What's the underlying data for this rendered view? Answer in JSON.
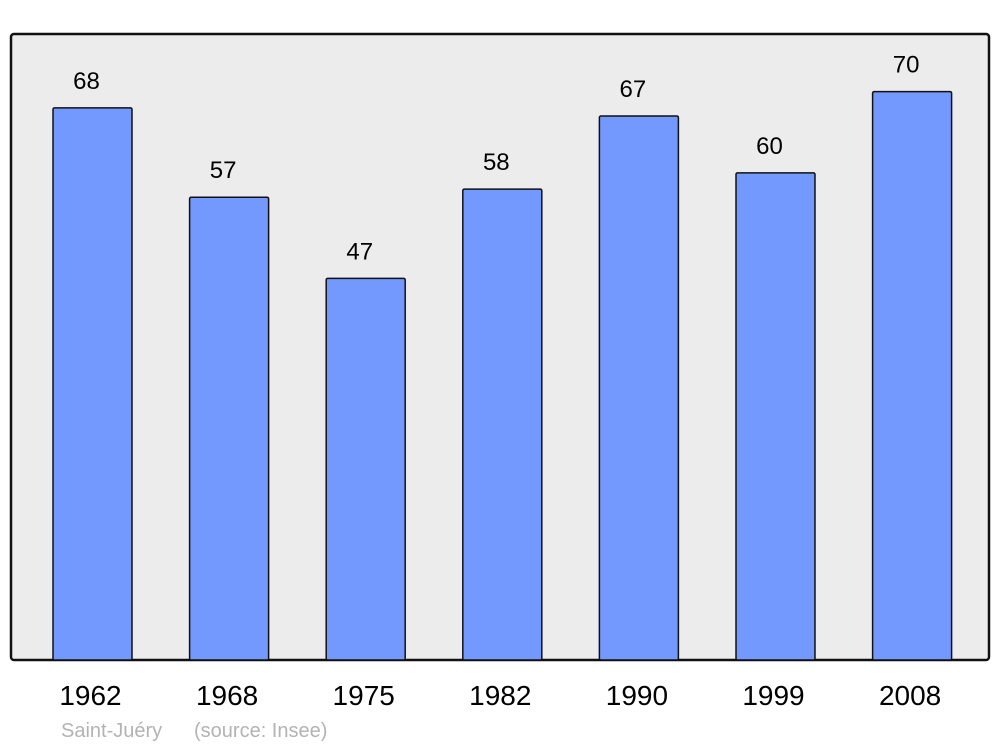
{
  "chart_data": {
    "type": "bar",
    "categories": [
      "1962",
      "1968",
      "1975",
      "1982",
      "1990",
      "1999",
      "2008"
    ],
    "values": [
      68,
      57,
      47,
      58,
      67,
      60,
      70
    ],
    "title": "",
    "xlabel": "",
    "ylabel": "",
    "ylim": [
      0,
      77.1
    ],
    "grid": false,
    "data_labels": true,
    "bar_color": "#7399ff",
    "background_color": "#ececec"
  },
  "footer": {
    "place": "Saint-Juéry",
    "source": "(source: Insee)"
  }
}
